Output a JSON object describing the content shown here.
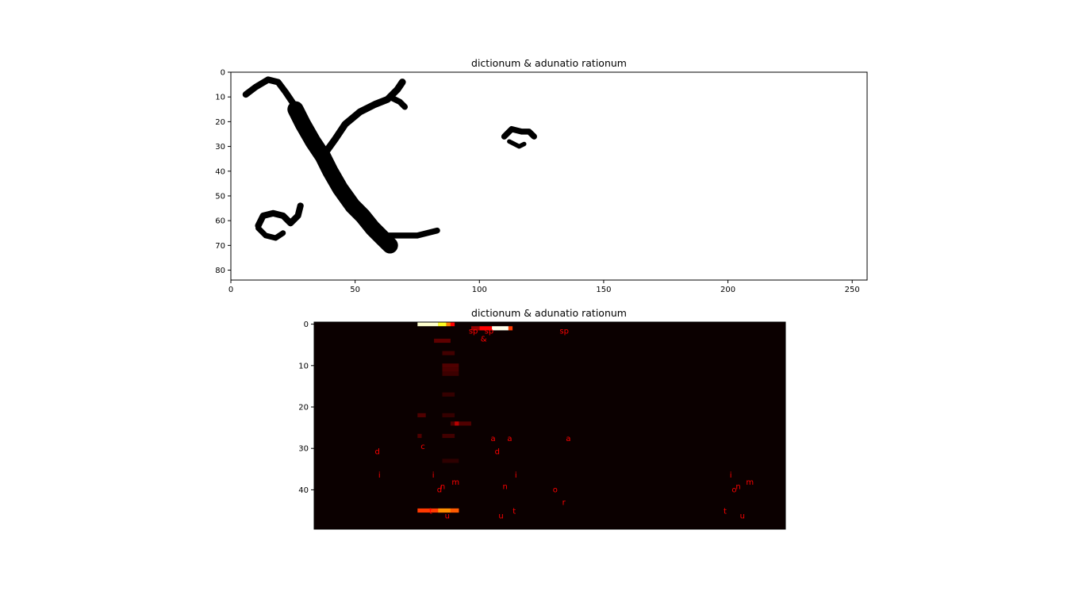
{
  "chart_data": [
    {
      "type": "heatmap",
      "subtype": "binary-image",
      "title": "dictionum & adunatio rationum",
      "colormap": "gray_r",
      "xlim": [
        0,
        256
      ],
      "ylim": [
        84,
        0
      ],
      "xticks": [
        0,
        50,
        100,
        150,
        200,
        250
      ],
      "yticks": [
        0,
        10,
        20,
        30,
        40,
        50,
        60,
        70,
        80
      ],
      "strokes": [
        {
          "name": "upper-left-hook",
          "points": [
            [
              6,
              9
            ],
            [
              10,
              6
            ],
            [
              15,
              3
            ],
            [
              19,
              4
            ],
            [
              22,
              8
            ],
            [
              24,
              11
            ],
            [
              26,
              14
            ]
          ],
          "width": 2.6
        },
        {
          "name": "main-diagonal",
          "points": [
            [
              26,
              15
            ],
            [
              29,
              21
            ],
            [
              33,
              28
            ],
            [
              37,
              34
            ],
            [
              40,
              40
            ],
            [
              44,
              47
            ],
            [
              49,
              54
            ],
            [
              53,
              58
            ],
            [
              57,
              63
            ],
            [
              61,
              67
            ],
            [
              64,
              70
            ]
          ],
          "width": 6.5
        },
        {
          "name": "lower-tail",
          "points": [
            [
              62,
              66
            ],
            [
              68,
              66
            ],
            [
              75,
              66
            ],
            [
              83,
              64
            ]
          ],
          "width": 2.4
        },
        {
          "name": "upper-right-arm",
          "points": [
            [
              37,
              34
            ],
            [
              42,
              27
            ],
            [
              46,
              21
            ],
            [
              52,
              16
            ],
            [
              58,
              13
            ],
            [
              63,
              11
            ],
            [
              67,
              7
            ],
            [
              69,
              4
            ]
          ],
          "width": 2.8
        },
        {
          "name": "arm-tip",
          "points": [
            [
              64,
              10
            ],
            [
              68,
              12
            ],
            [
              70,
              14
            ]
          ],
          "width": 2.4
        },
        {
          "name": "lower-left-loop",
          "points": [
            [
              11,
              62
            ],
            [
              13,
              58
            ],
            [
              17,
              57
            ],
            [
              21,
              58
            ],
            [
              24,
              61
            ],
            [
              27,
              58
            ],
            [
              28,
              54
            ]
          ],
          "width": 2.6
        },
        {
          "name": "loop-bottom",
          "points": [
            [
              11,
              63
            ],
            [
              14,
              66
            ],
            [
              18,
              67
            ],
            [
              21,
              65
            ]
          ],
          "width": 2.2
        },
        {
          "name": "small-blob",
          "points": [
            [
              110,
              26
            ],
            [
              113,
              23
            ],
            [
              117,
              24
            ],
            [
              120,
              24
            ],
            [
              122,
              26
            ]
          ],
          "width": 2.4
        },
        {
          "name": "small-blob-bottom",
          "points": [
            [
              112,
              28
            ],
            [
              116,
              30
            ],
            [
              118,
              29
            ]
          ],
          "width": 1.8
        }
      ]
    },
    {
      "type": "heatmap",
      "subtype": "attention-map",
      "title": "dictionum & adunatio rationum",
      "colormap": "hot",
      "xlim": [
        0,
        114
      ],
      "ylim": [
        50,
        0
      ],
      "yticks": [
        0,
        10,
        20,
        30,
        40
      ],
      "cells": [
        {
          "x0": 25,
          "x1": 30,
          "y": 0,
          "v": 0.95
        },
        {
          "x0": 30,
          "x1": 32,
          "y": 0,
          "v": 0.78
        },
        {
          "x0": 32,
          "x1": 33,
          "y": 0,
          "v": 0.55
        },
        {
          "x0": 33,
          "x1": 34,
          "y": 0,
          "v": 0.35
        },
        {
          "x0": 40,
          "x1": 43,
          "y": 1,
          "v": 0.35
        },
        {
          "x0": 43,
          "x1": 47,
          "y": 1,
          "v": 0.98
        },
        {
          "x0": 47,
          "x1": 48,
          "y": 1,
          "v": 0.45
        },
        {
          "x0": 38,
          "x1": 40,
          "y": 1,
          "v": 0.2
        },
        {
          "x0": 29,
          "x1": 33,
          "y": 4,
          "v": 0.12
        },
        {
          "x0": 31,
          "x1": 34,
          "y": 7,
          "v": 0.08
        },
        {
          "x0": 31,
          "x1": 35,
          "y": 10,
          "v": 0.1
        },
        {
          "x0": 31,
          "x1": 35,
          "y": 11,
          "v": 0.09
        },
        {
          "x0": 31,
          "x1": 35,
          "y": 12,
          "v": 0.07
        },
        {
          "x0": 31,
          "x1": 34,
          "y": 17,
          "v": 0.06
        },
        {
          "x0": 25,
          "x1": 27,
          "y": 22,
          "v": 0.1
        },
        {
          "x0": 31,
          "x1": 34,
          "y": 22,
          "v": 0.06
        },
        {
          "x0": 33,
          "x1": 38,
          "y": 24,
          "v": 0.1
        },
        {
          "x0": 34,
          "x1": 35,
          "y": 24,
          "v": 0.25
        },
        {
          "x0": 25,
          "x1": 26,
          "y": 27,
          "v": 0.1
        },
        {
          "x0": 31,
          "x1": 34,
          "y": 27,
          "v": 0.08
        },
        {
          "x0": 31,
          "x1": 35,
          "y": 33,
          "v": 0.05
        },
        {
          "x0": 25,
          "x1": 35,
          "y": 45,
          "v": 0.45
        },
        {
          "x0": 30,
          "x1": 33,
          "y": 45,
          "v": 0.58
        },
        {
          "x0": 33,
          "x1": 35,
          "y": 45,
          "v": 0.5
        }
      ],
      "annotations": [
        {
          "text": "sp",
          "x": 38.5,
          "y": 2.1
        },
        {
          "text": "sp",
          "x": 42.3,
          "y": 2.1
        },
        {
          "text": "sp",
          "x": 60.5,
          "y": 2.1
        },
        {
          "text": "&",
          "x": 41.0,
          "y": 4.0
        },
        {
          "text": "a",
          "x": 43.3,
          "y": 28.1
        },
        {
          "text": "a",
          "x": 47.3,
          "y": 28.1
        },
        {
          "text": "a",
          "x": 61.5,
          "y": 28.1
        },
        {
          "text": "c",
          "x": 26.3,
          "y": 30.0
        },
        {
          "text": "d",
          "x": 15.3,
          "y": 31.2
        },
        {
          "text": "d",
          "x": 44.3,
          "y": 31.2
        },
        {
          "text": "i",
          "x": 15.8,
          "y": 36.9
        },
        {
          "text": "i",
          "x": 28.8,
          "y": 36.9
        },
        {
          "text": "i",
          "x": 48.8,
          "y": 36.9
        },
        {
          "text": "i",
          "x": 100.8,
          "y": 36.9
        },
        {
          "text": "m",
          "x": 34.2,
          "y": 38.6
        },
        {
          "text": "m",
          "x": 105.4,
          "y": 38.6
        },
        {
          "text": "n",
          "x": 31.1,
          "y": 39.7
        },
        {
          "text": "n",
          "x": 46.2,
          "y": 39.7
        },
        {
          "text": "n",
          "x": 102.6,
          "y": 39.7
        },
        {
          "text": "d",
          "x": 30.3,
          "y": 40.4
        },
        {
          "text": "o",
          "x": 58.3,
          "y": 40.4
        },
        {
          "text": "o",
          "x": 101.6,
          "y": 40.4
        },
        {
          "text": "r",
          "x": 60.4,
          "y": 43.5
        },
        {
          "text": "t",
          "x": 28.2,
          "y": 45.6
        },
        {
          "text": "t",
          "x": 48.4,
          "y": 45.6
        },
        {
          "text": "t",
          "x": 99.4,
          "y": 45.6
        },
        {
          "text": "u",
          "x": 32.2,
          "y": 46.7
        },
        {
          "text": "u",
          "x": 45.2,
          "y": 46.7
        },
        {
          "text": "u",
          "x": 103.6,
          "y": 46.7
        }
      ]
    }
  ]
}
